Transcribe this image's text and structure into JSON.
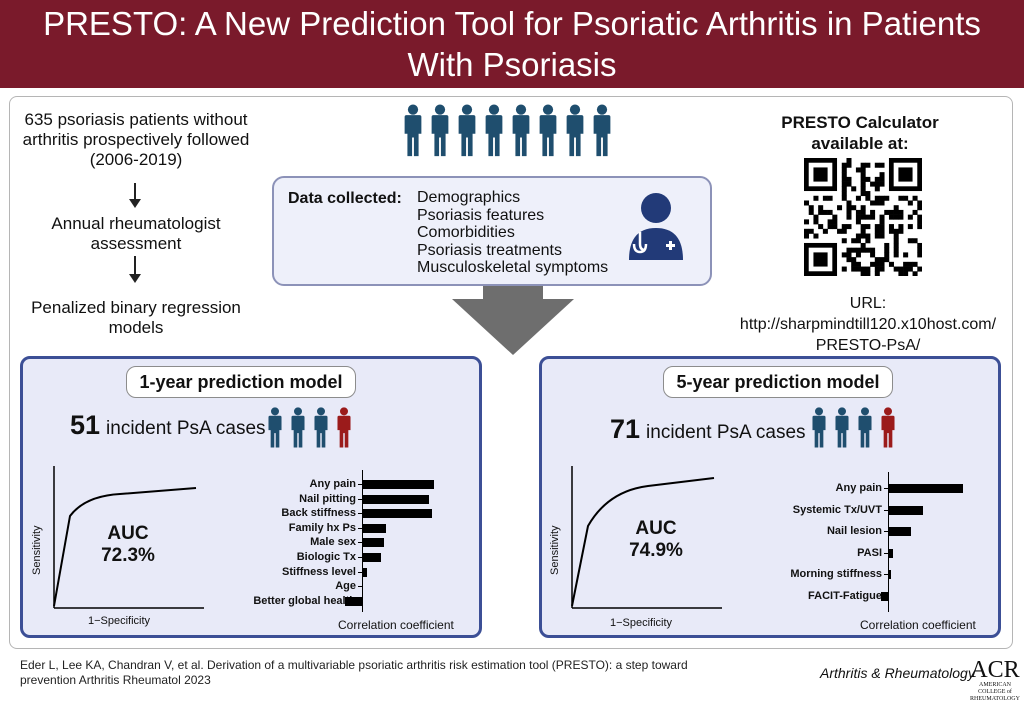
{
  "title": "PRESTO: A New Prediction Tool for Psoriatic Arthritis in Patients With Psoriasis",
  "flow": {
    "step1": "635 psoriasis patients without arthritis prospectively followed (2006-2019)",
    "step2": "Annual rheumatologist assessment",
    "step3": "Penalized binary regression models"
  },
  "data_box": {
    "label": "Data collected:",
    "items": [
      "Demographics",
      "Psoriasis features",
      "Comorbidities",
      "Psoriasis treatments",
      "Musculoskeletal symptoms"
    ]
  },
  "calculator": {
    "title": "PRESTO Calculator available at:",
    "url_label": "URL:",
    "url": "http://sharpmindtill120.x10host.com/ PRESTO-PsA/"
  },
  "colors": {
    "title_bg": "#7a1a2b",
    "panel_border": "#3c4f96",
    "panel_bg": "#e8eaf8",
    "person_blue": "#1f4e6e",
    "person_red": "#9b1b1b"
  },
  "model1": {
    "title": "1-year prediction model",
    "cases_num": "51",
    "cases_text": "incident PsA cases",
    "auc_label": "AUC",
    "auc_value": "72.3%",
    "y_axis": "Sensitivity",
    "x_axis": "1−Specificity",
    "bar_axis": "Correlation coefficient",
    "bars": [
      {
        "label": "Any pain",
        "value": 0.3
      },
      {
        "label": "Nail pitting",
        "value": 0.28
      },
      {
        "label": "Back stiffness",
        "value": 0.29
      },
      {
        "label": "Family hx Ps",
        "value": 0.1
      },
      {
        "label": "Male sex",
        "value": 0.09
      },
      {
        "label": "Biologic Tx",
        "value": 0.08
      },
      {
        "label": "Stiffness level",
        "value": 0.02
      },
      {
        "label": "Age",
        "value": 0.0
      },
      {
        "label": "Better global health",
        "value": -0.07
      }
    ]
  },
  "model2": {
    "title": "5-year prediction model",
    "cases_num": "71",
    "cases_text": "incident PsA cases",
    "auc_label": "AUC",
    "auc_value": "74.9%",
    "y_axis": "Sensitivity",
    "x_axis": "1−Specificity",
    "bar_axis": "Correlation coefficient",
    "bars": [
      {
        "label": "Any pain",
        "value": 0.3
      },
      {
        "label": "Systemic Tx/UVT",
        "value": 0.14
      },
      {
        "label": "Nail lesion",
        "value": 0.09
      },
      {
        "label": "PASI",
        "value": 0.02
      },
      {
        "label": "Morning stiffness",
        "value": 0.01
      },
      {
        "label": "FACIT-Fatigue",
        "value": -0.03
      }
    ]
  },
  "citation": "Eder L, Lee KA, Chandran V, et al. Derivation of a multivariable psoriatic arthritis risk estimation tool (PRESTO): a step toward prevention  Arthritis Rheumatol 2023",
  "journal": "Arthritis & Rheumatology",
  "acr": {
    "logo": "ACR",
    "sub": "AMERICAN COLLEGE of RHEUMATOLOGY"
  }
}
